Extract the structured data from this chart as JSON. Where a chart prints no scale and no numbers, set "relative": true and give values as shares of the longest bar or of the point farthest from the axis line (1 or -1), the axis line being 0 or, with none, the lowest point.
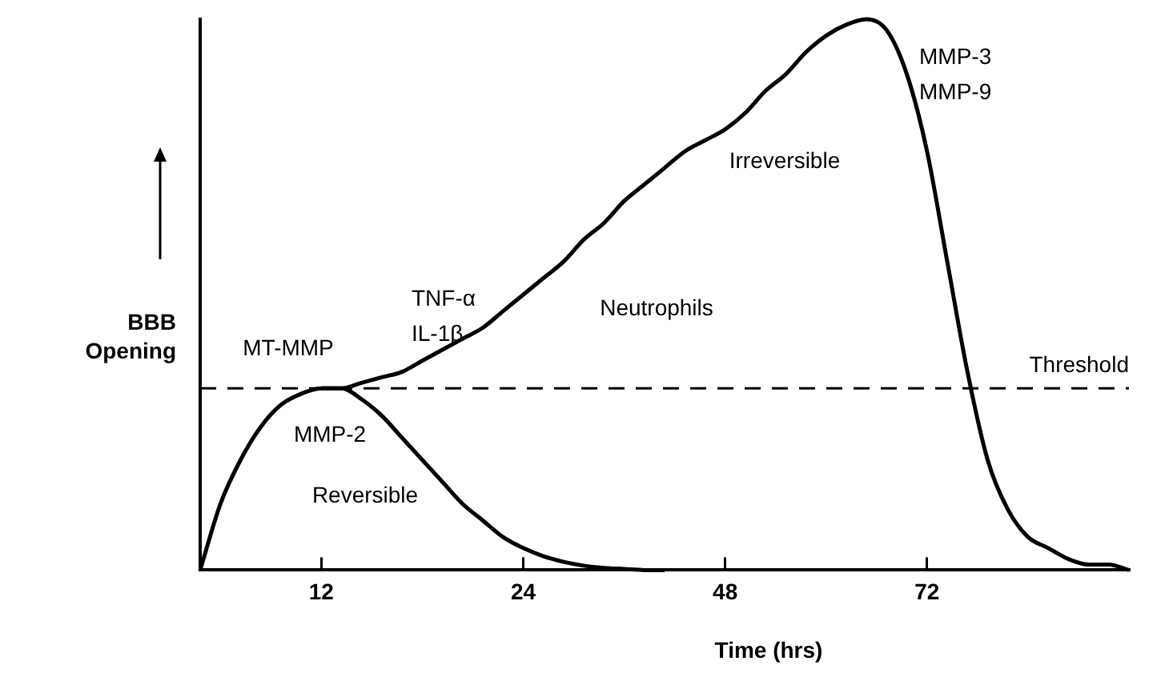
{
  "chart_data": {
    "type": "line",
    "relative": true,
    "xlabel": "Time (hrs)",
    "ylabel": "BBB Opening",
    "categories": [
      null,
      null,
      null,
      null,
      null,
      null,
      "12",
      null,
      null,
      null,
      null,
      null,
      null,
      null,
      null,
      null,
      "24",
      null,
      null,
      null,
      null,
      null,
      null,
      null,
      null,
      null,
      "48",
      null,
      null,
      null,
      null,
      null,
      null,
      null,
      null,
      null,
      "72",
      null,
      null,
      null,
      null,
      null,
      null,
      null,
      null,
      null,
      null
    ],
    "series": [
      {
        "color": "#000000",
        "values": [
          0,
          0.12,
          0.2,
          0.26,
          0.3,
          0.32,
          0.33,
          0.33,
          0.31,
          0.28,
          0.24,
          0.2,
          0.16,
          0.12,
          0.09,
          0.06,
          0.04,
          0.025,
          0.015,
          0.008,
          0.004,
          0.002,
          0,
          0,
          null,
          null,
          null,
          null,
          null,
          null,
          null,
          null,
          null,
          null,
          null,
          null,
          null,
          null,
          null,
          null,
          null,
          null,
          null,
          null,
          null,
          null,
          null
        ]
      },
      {
        "color": "#000000",
        "values": [
          null,
          null,
          null,
          null,
          null,
          null,
          0.33,
          0.33,
          0.34,
          0.35,
          0.36,
          0.38,
          0.4,
          0.42,
          0.44,
          0.47,
          0.5,
          0.53,
          0.56,
          0.6,
          0.63,
          0.67,
          0.7,
          0.73,
          0.76,
          0.78,
          0.8,
          0.83,
          0.87,
          0.9,
          0.94,
          0.97,
          0.99,
          1,
          0.98,
          0.9,
          0.76,
          0.56,
          0.36,
          0.2,
          0.11,
          0.06,
          0.04,
          0.02,
          0.01,
          0.01,
          0
        ]
      }
    ],
    "ref_lines": [
      {
        "axis": "y",
        "value": 0.33,
        "label": "Threshold",
        "line_style": "dashed",
        "color": "#000000"
      }
    ],
    "annotations": [
      "MT-MMP",
      "MMP-2",
      "Reversible",
      "TNF-α\nIL-1β",
      "Neutrophils",
      "Irreversible",
      "MMP-3\nMMP-9"
    ],
    "grid": false,
    "legend": false,
    "marker": "none",
    "line_style": "solid"
  }
}
